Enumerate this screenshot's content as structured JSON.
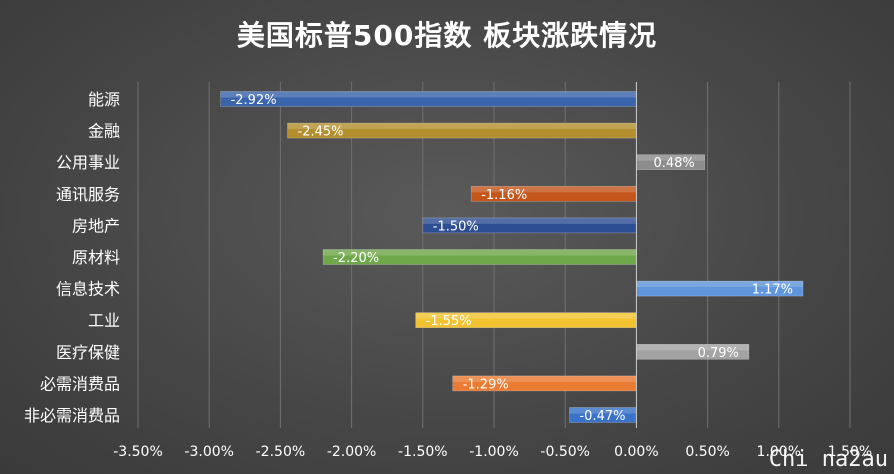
{
  "chart_data": {
    "type": "bar",
    "orientation": "horizontal",
    "title": "美国标普500指数 板块涨跌情况",
    "categories": [
      "能源",
      "金融",
      "公用事业",
      "通讯服务",
      "房地产",
      "原材料",
      "信息技术",
      "工业",
      "医疗保健",
      "必需消费品",
      "非必需消费品"
    ],
    "values": [
      -2.92,
      -2.45,
      0.48,
      -1.16,
      -1.5,
      -2.2,
      1.17,
      -1.55,
      0.79,
      -1.29,
      -0.47
    ],
    "data_labels": [
      "-2.92%",
      "-2.45%",
      "0.48%",
      "-1.16%",
      "-1.50%",
      "-2.20%",
      "1.17%",
      "-1.55%",
      "0.79%",
      "-1.29%",
      "-0.47%"
    ],
    "colors": [
      "#3a65ad",
      "#b38f2e",
      "#8c8c8c",
      "#c4561c",
      "#2e4e93",
      "#6fa84a",
      "#5e95db",
      "#f2c230",
      "#a3a3a3",
      "#e97b33",
      "#3a72c9"
    ],
    "xlim": [
      -3.5,
      1.5
    ],
    "xticks": [
      -3.5,
      -3.0,
      -2.5,
      -2.0,
      -1.5,
      -1.0,
      -0.5,
      0.0,
      0.5,
      1.0,
      1.5
    ],
    "xtick_labels": [
      "-3.50%",
      "-3.00%",
      "-2.50%",
      "-2.00%",
      "-1.50%",
      "-1.00%",
      "-0.50%",
      "0.00%",
      "0.50%",
      "1.00%",
      "1.50%"
    ],
    "grid": "vertical",
    "legend": "none",
    "xlabel": "",
    "ylabel": ""
  },
  "watermark": "Chi na2au",
  "style": {
    "background": "#474747",
    "grid_color": "#707070",
    "axis_color": "#cfcfcf",
    "text_color": "#ffffff"
  }
}
